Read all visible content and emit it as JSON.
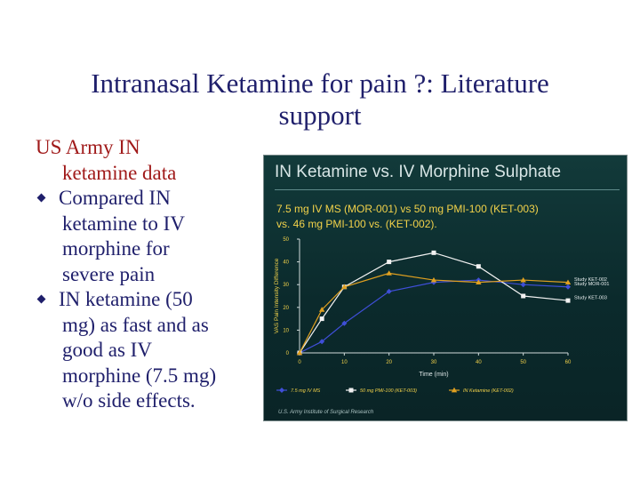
{
  "slide": {
    "title_line1": "Intranasal Ketamine for pain ?: Literature",
    "title_line2": "support",
    "intro_line1": "US Army IN",
    "intro_line2": "ketamine data",
    "bullet1": [
      "Compared IN",
      "ketamine to IV",
      "morphine for",
      "severe pain"
    ],
    "bullet2": [
      "IN ketamine (50",
      "mg) as fast and as",
      "good as IV",
      "morphine (7.5 mg)",
      "w/o side effects."
    ],
    "colors": {
      "title": "#1f1f6b",
      "intro": "#a01a1a",
      "bullet": "#1f1f6b"
    }
  },
  "figure": {
    "title": "IN Ketamine vs. IV Morphine Sulphate",
    "subtitle_line1": "7.5 mg IV MS (MOR-001) vs 50 mg PMI-100 (KET-003)",
    "subtitle_line2": "vs. 46 mg PMI-100 vs. (KET-002).",
    "footer": "U.S. Army Institute of Surgical Research"
  },
  "chart_data": {
    "type": "line",
    "title": "",
    "xlabel": "Time (min)",
    "ylabel": "VAS Pain Intensity Difference",
    "x": [
      0,
      5,
      10,
      20,
      30,
      40,
      50,
      60
    ],
    "xticks": [
      0,
      10,
      20,
      30,
      40,
      50,
      60
    ],
    "yticks": [
      0,
      10,
      20,
      30,
      40,
      50
    ],
    "xlim": [
      0,
      60
    ],
    "ylim": [
      0,
      50
    ],
    "grid": false,
    "legend_position": "bottom",
    "series": [
      {
        "name": "7.5 mg IV MS",
        "end_label": "Study MOR-001",
        "color": "#3f4fd8",
        "marker": "diamond",
        "values": [
          0,
          5,
          13,
          27,
          31,
          32,
          30,
          29
        ]
      },
      {
        "name": "50 mg PMI-100 (KET-003)",
        "end_label": "Study KET-003",
        "color": "#f2f2f2",
        "marker": "square",
        "values": [
          0,
          15,
          29,
          40,
          44,
          38,
          25,
          23
        ]
      },
      {
        "name": "IN Ketamine (KET-002)",
        "end_label": "Study KET-002",
        "color": "#e0a020",
        "marker": "triangle",
        "values": [
          0,
          19,
          29,
          35,
          32,
          31,
          32,
          31
        ]
      }
    ]
  }
}
